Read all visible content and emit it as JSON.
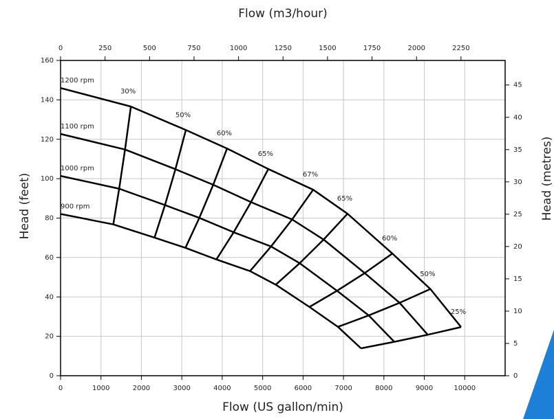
{
  "chart_data": {
    "type": "line",
    "xlabel": "Flow (US gallon/min)",
    "x2label": "Flow (m3/hour)",
    "ylabel": "Head (feet)",
    "y2label": "Head (metres)",
    "xlim": [
      0,
      11000
    ],
    "xticks": [
      0,
      1000,
      2000,
      3000,
      4000,
      5000,
      6000,
      7000,
      8000,
      9000,
      10000
    ],
    "x2lim": [
      0,
      2498
    ],
    "x2ticks": [
      0,
      250,
      500,
      750,
      1000,
      1250,
      1500,
      1750,
      2000,
      2250
    ],
    "ylim": [
      0,
      160
    ],
    "yticks": [
      0,
      20,
      40,
      60,
      80,
      100,
      120,
      140,
      160
    ],
    "y2lim": [
      0,
      48.8
    ],
    "y2ticks": [
      0,
      5,
      10,
      15,
      20,
      25,
      30,
      35,
      40,
      45
    ],
    "grid": true,
    "color": "#000000",
    "series": [
      {
        "name": "1200 rpm",
        "x": [
          0,
          1740,
          3100,
          4120,
          5140,
          6250,
          7100,
          8210,
          9150,
          9910
        ],
        "values": [
          146,
          136.6,
          124.7,
          115.3,
          104.9,
          94.4,
          82.2,
          62,
          44,
          24.7
        ]
      },
      {
        "name": "1100 rpm",
        "x": [
          0,
          1595,
          2842,
          3777,
          4712,
          5729,
          6509,
          7526,
          8388,
          9085
        ],
        "values": [
          122.7,
          114.8,
          104.8,
          96.9,
          88.1,
          79.3,
          69.1,
          52.1,
          37,
          20.8
        ]
      },
      {
        "name": "1000 rpm",
        "x": [
          0,
          1450,
          2583,
          3433,
          4283,
          5208,
          5917,
          6841,
          7625,
          8258
        ],
        "values": [
          101.4,
          94.9,
          86.6,
          80.1,
          72.8,
          65.6,
          57.1,
          43.1,
          30.6,
          17.2
        ]
      },
      {
        "name": "900 rpm",
        "x": [
          0,
          1305,
          2325,
          3090,
          3855,
          4688,
          5325,
          6158,
          6863,
          7433
        ],
        "values": [
          82.1,
          76.8,
          70.1,
          64.9,
          59,
          53.1,
          46.2,
          34.9,
          24.8,
          13.9
        ]
      },
      {
        "name": "30%",
        "x": [
          1740,
          1595,
          1450,
          1305
        ],
        "values": [
          136.6,
          114.8,
          94.9,
          76.8
        ]
      },
      {
        "name": "50%",
        "x": [
          3100,
          2842,
          2583,
          2325
        ],
        "values": [
          124.7,
          104.8,
          86.6,
          70.1
        ]
      },
      {
        "name": "60%",
        "x": [
          4120,
          3777,
          3433,
          3090
        ],
        "values": [
          115.3,
          96.9,
          80.1,
          64.9
        ]
      },
      {
        "name": "65%",
        "x": [
          5140,
          4712,
          4283,
          3855
        ],
        "values": [
          104.9,
          88.1,
          72.8,
          59
        ]
      },
      {
        "name": "67%",
        "x": [
          6250,
          5729,
          5208,
          4688
        ],
        "values": [
          94.4,
          79.3,
          65.6,
          53.1
        ]
      },
      {
        "name": "65%",
        "x": [
          7100,
          6509,
          5917,
          5325
        ],
        "values": [
          82.2,
          69.1,
          57.1,
          46.2
        ]
      },
      {
        "name": "60%",
        "x": [
          8210,
          7526,
          6841,
          6158
        ],
        "values": [
          62,
          52.1,
          43.1,
          34.9
        ]
      },
      {
        "name": "50%",
        "x": [
          9150,
          8388,
          7625,
          6863
        ],
        "values": [
          44,
          37,
          30.6,
          24.8
        ]
      },
      {
        "name": "25%",
        "x": [
          9910,
          9085,
          8258,
          7433
        ],
        "values": [
          24.7,
          20.8,
          17.2,
          13.9
        ]
      }
    ]
  }
}
